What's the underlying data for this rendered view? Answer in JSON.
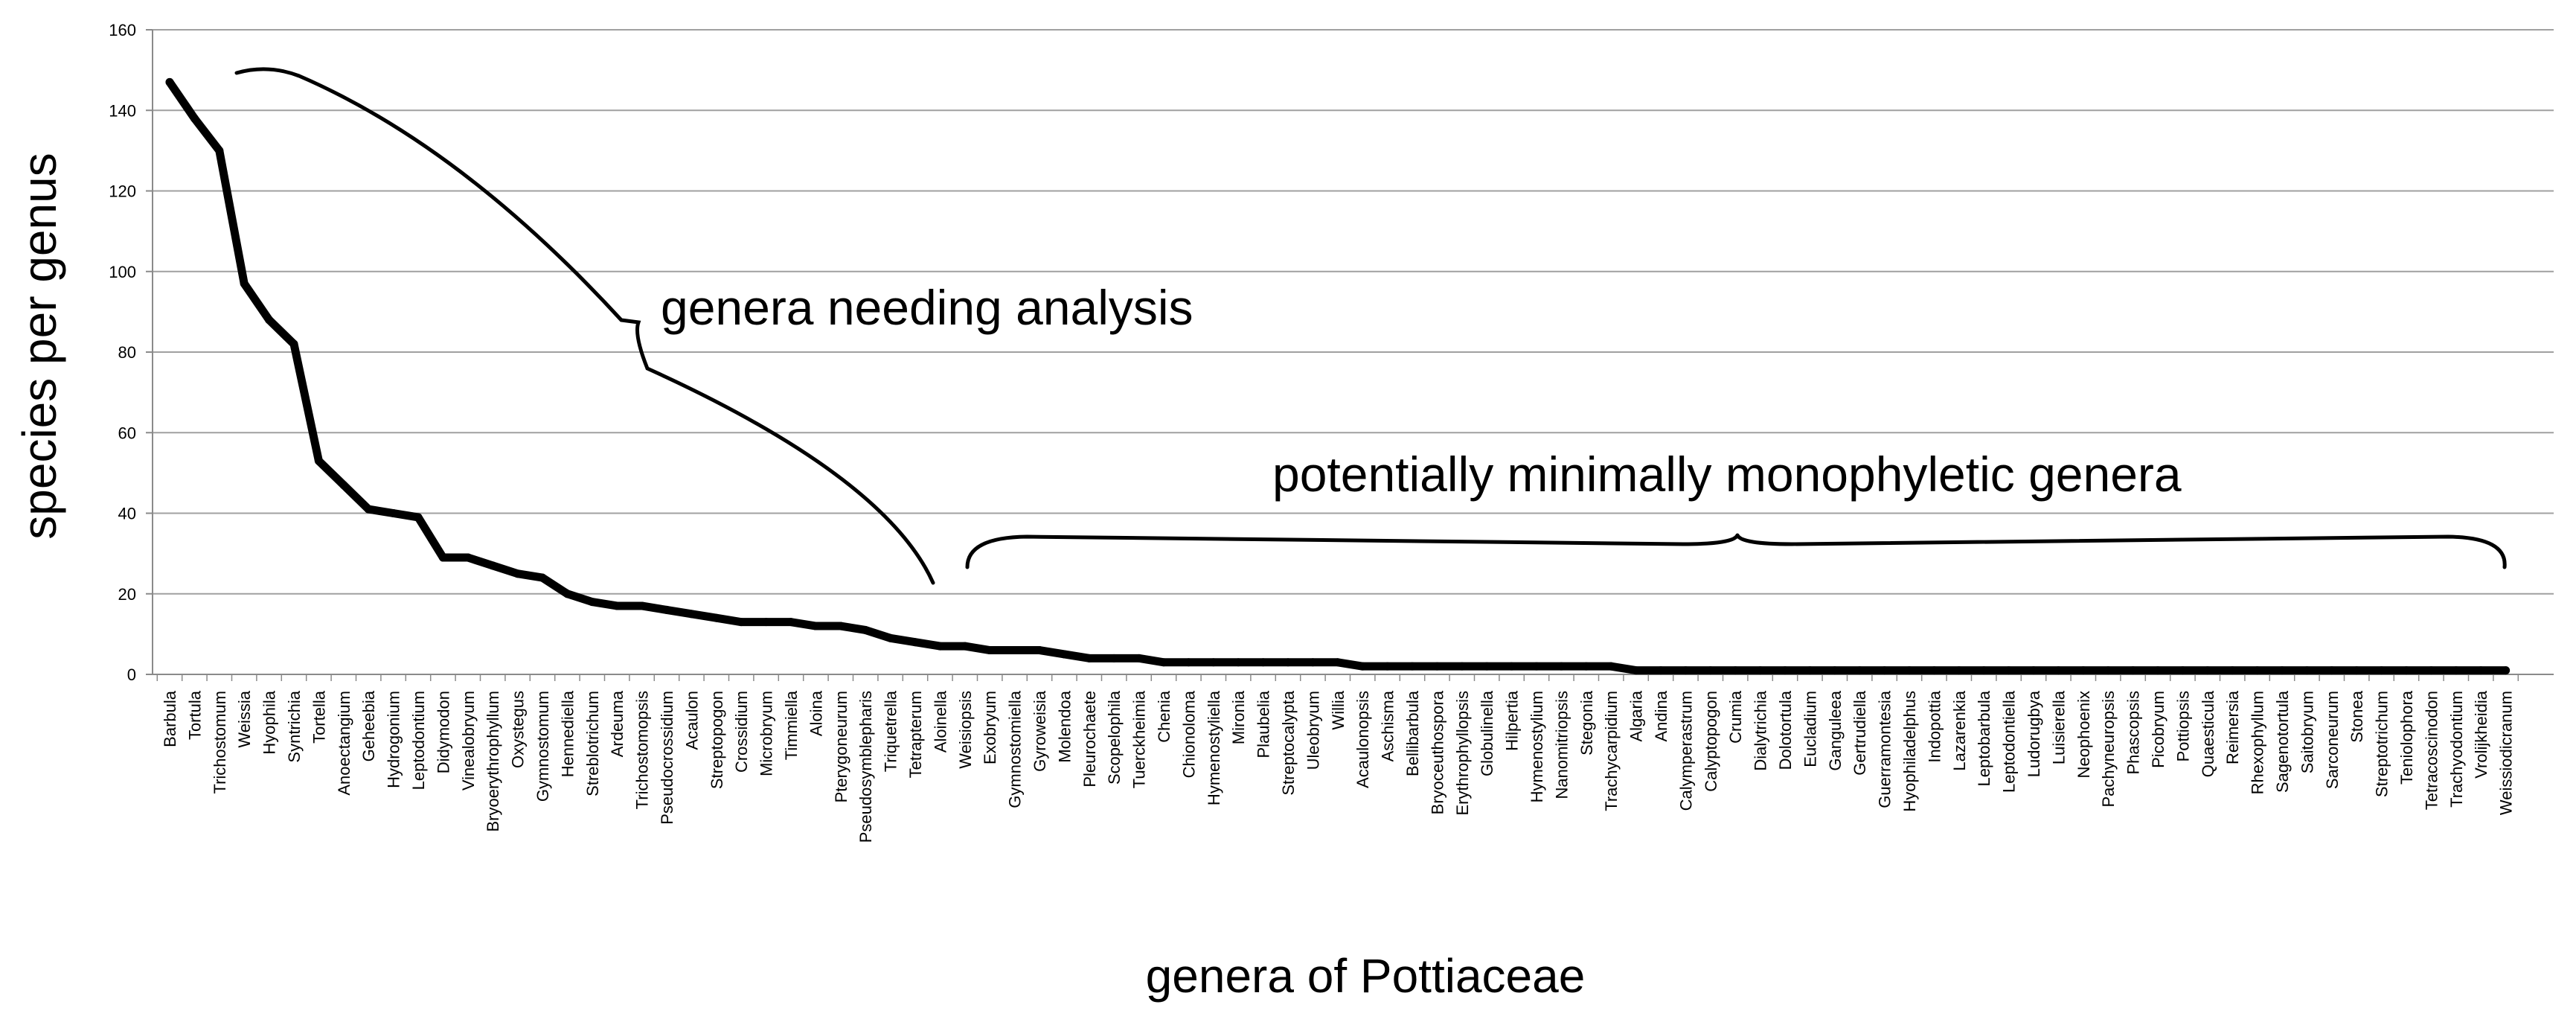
{
  "chart_data": {
    "type": "line",
    "title": "",
    "xlabel": "genera of Pottiaceae",
    "ylabel": "species per genus",
    "ylim": [
      0,
      160
    ],
    "yticks": [
      0,
      20,
      40,
      60,
      80,
      100,
      120,
      140,
      160
    ],
    "grid": true,
    "categories": [
      "Barbula",
      "Tortula",
      "Trichostomum",
      "Weissia",
      "Hyophila",
      "Syntrichia",
      "Tortella",
      "Anoectangium",
      "Geheebia",
      "Hydrogonium",
      "Leptodontium",
      "Didymodon",
      "Vinealobryum",
      "Bryoerythrophyllum",
      "Oxystegus",
      "Gymnostomum",
      "Hennediella",
      "Streblotrichum",
      "Ardeuma",
      "Trichostomopsis",
      "Pseudocrossidium",
      "Acaulon",
      "Streptopogon",
      "Crossidium",
      "Microbryum",
      "Timmiella",
      "Aloina",
      "Pterygoneurum",
      "Pseudosymblepharis",
      "Triquetrella",
      "Tetrapterum",
      "Aloinella",
      "Weisiopsis",
      "Exobryum",
      "Gymnostomiella",
      "Gyroweisia",
      "Molendoa",
      "Pleurochaete",
      "Scopelophila",
      "Tuerckheimia",
      "Chenia",
      "Chionoloma",
      "Hymenostyliella",
      "Mironia",
      "Plaubelia",
      "Streptocalypta",
      "Uleobryum",
      "Willia",
      "Acaulonopsis",
      "Aschisma",
      "Bellibarbula",
      "Bryoceuthospora",
      "Erythrophyllopsis",
      "Globulinella",
      "Hilpertia",
      "Hymenostylium",
      "Nanomitriopsis",
      "Stegonia",
      "Trachycarpidium",
      "Algaria",
      "Andina",
      "Calymperastrum",
      "Calyptopogon",
      "Crumia",
      "Dialytrichia",
      "Dolotortula",
      "Eucladium",
      "Ganguleea",
      "Gertrudiella",
      "Guerramontesia",
      "Hyophiladelphus",
      "Indopottia",
      "Lazarenkia",
      "Leptobarbula",
      "Leptodontiella",
      "Ludorugbya",
      "Luisierella",
      "Neophoenix",
      "Pachyneuropsis",
      "Phascopsis",
      "Picobryum",
      "Pottiopsis",
      "Quaesticula",
      "Reimersia",
      "Rhexophyllum",
      "Sagenotortula",
      "Saitobryum",
      "Sarconeurum",
      "Stonea",
      "Streptotrichum",
      "Teniolophora",
      "Tetracoscinodon",
      "Trachyodontium",
      "Vrolijkheidia",
      "Weissiodicranum"
    ],
    "series": [
      {
        "name": "species per genus",
        "values": [
          147,
          138,
          130,
          97,
          88,
          82,
          53,
          47,
          41,
          40,
          39,
          29,
          29,
          27,
          25,
          24,
          20,
          18,
          17,
          17,
          16,
          15,
          14,
          13,
          13,
          13,
          12,
          12,
          11,
          9,
          8,
          7,
          7,
          6,
          6,
          6,
          5,
          4,
          4,
          4,
          3,
          3,
          3,
          3,
          3,
          3,
          3,
          3,
          2,
          2,
          2,
          2,
          2,
          2,
          2,
          2,
          2,
          2,
          2,
          1,
          1,
          1,
          1,
          1,
          1,
          1,
          1,
          1,
          1,
          1,
          1,
          1,
          1,
          1,
          1,
          1,
          1,
          1,
          1,
          1,
          1,
          1,
          1,
          1,
          1,
          1,
          1,
          1,
          1,
          1,
          1,
          1,
          1,
          1,
          1
        ],
        "color": "#000000"
      }
    ],
    "annotations": [
      {
        "text": "genera needing analysis",
        "covers": [
          "Weissia",
          "Aloinella"
        ]
      },
      {
        "text": "potentially minimally monophyletic genera",
        "covers": [
          "Weisiopsis",
          "Weissiodicranum"
        ]
      }
    ]
  }
}
